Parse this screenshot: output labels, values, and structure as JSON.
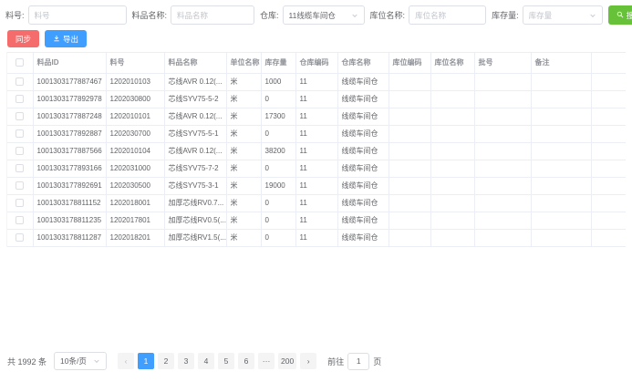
{
  "filters": {
    "item_no": {
      "label": "料号:",
      "placeholder": "料号"
    },
    "item_name": {
      "label": "料品名称:",
      "placeholder": "料品名称"
    },
    "warehouse": {
      "label": "仓库:",
      "value": "11线缆车间仓"
    },
    "location_name": {
      "label": "库位名称:",
      "placeholder": "库位名称"
    },
    "stock_qty": {
      "label": "库存量:",
      "placeholder": "库存量"
    },
    "search_label": "搜索"
  },
  "toolbar": {
    "sync_label": "同步",
    "export_label": "导出"
  },
  "table": {
    "columns": [
      "料品ID",
      "料号",
      "料品名称",
      "单位名称",
      "库存量",
      "仓库编码",
      "仓库名称",
      "库位编码",
      "库位名称",
      "批号",
      "备注"
    ],
    "rows": [
      [
        "1001303177887467",
        "1202010103",
        "芯线AVR 0.12(...",
        "米",
        "1000",
        "11",
        "线缆车间仓",
        "",
        "",
        "",
        ""
      ],
      [
        "1001303177892978",
        "1202030800",
        "芯线SYV75-5-2",
        "米",
        "0",
        "11",
        "线缆车间仓",
        "",
        "",
        "",
        ""
      ],
      [
        "1001303177887248",
        "1202010101",
        "芯线AVR 0.12(...",
        "米",
        "17300",
        "11",
        "线缆车间仓",
        "",
        "",
        "",
        ""
      ],
      [
        "1001303177892887",
        "1202030700",
        "芯线SYV75-5-1",
        "米",
        "0",
        "11",
        "线缆车间仓",
        "",
        "",
        "",
        ""
      ],
      [
        "1001303177887566",
        "1202010104",
        "芯线AVR 0.12(...",
        "米",
        "38200",
        "11",
        "线缆车间仓",
        "",
        "",
        "",
        ""
      ],
      [
        "1001303177893166",
        "1202031000",
        "芯线SYV75-7-2",
        "米",
        "0",
        "11",
        "线缆车间仓",
        "",
        "",
        "",
        ""
      ],
      [
        "1001303177892691",
        "1202030500",
        "芯线SYV75-3-1",
        "米",
        "19000",
        "11",
        "线缆车间仓",
        "",
        "",
        "",
        ""
      ],
      [
        "1001303178811152",
        "1202018001",
        "加厚芯线RV0.7...",
        "米",
        "0",
        "11",
        "线缆车间仓",
        "",
        "",
        "",
        ""
      ],
      [
        "1001303178811235",
        "1202017801",
        "加厚芯线RV0.5(...",
        "米",
        "0",
        "11",
        "线缆车间仓",
        "",
        "",
        "",
        ""
      ],
      [
        "1001303178811287",
        "1202018201",
        "加厚芯线RV1.5(...",
        "米",
        "0",
        "11",
        "线缆车间仓",
        "",
        "",
        "",
        ""
      ]
    ]
  },
  "pagination": {
    "total_text": "共 1992 条",
    "page_size": "10条/页",
    "prev_icon": "‹",
    "next_icon": "›",
    "pages": [
      "1",
      "2",
      "3",
      "4",
      "5",
      "6",
      "···",
      "200"
    ],
    "active_page": "1",
    "goto_label": "前往",
    "goto_value": "1",
    "goto_suffix": "页"
  },
  "colors": {
    "primary": "#409eff",
    "success": "#67c23a",
    "danger": "#f56c6c",
    "border": "#ebeef5",
    "header_text": "#909399",
    "body_text": "#606266"
  }
}
